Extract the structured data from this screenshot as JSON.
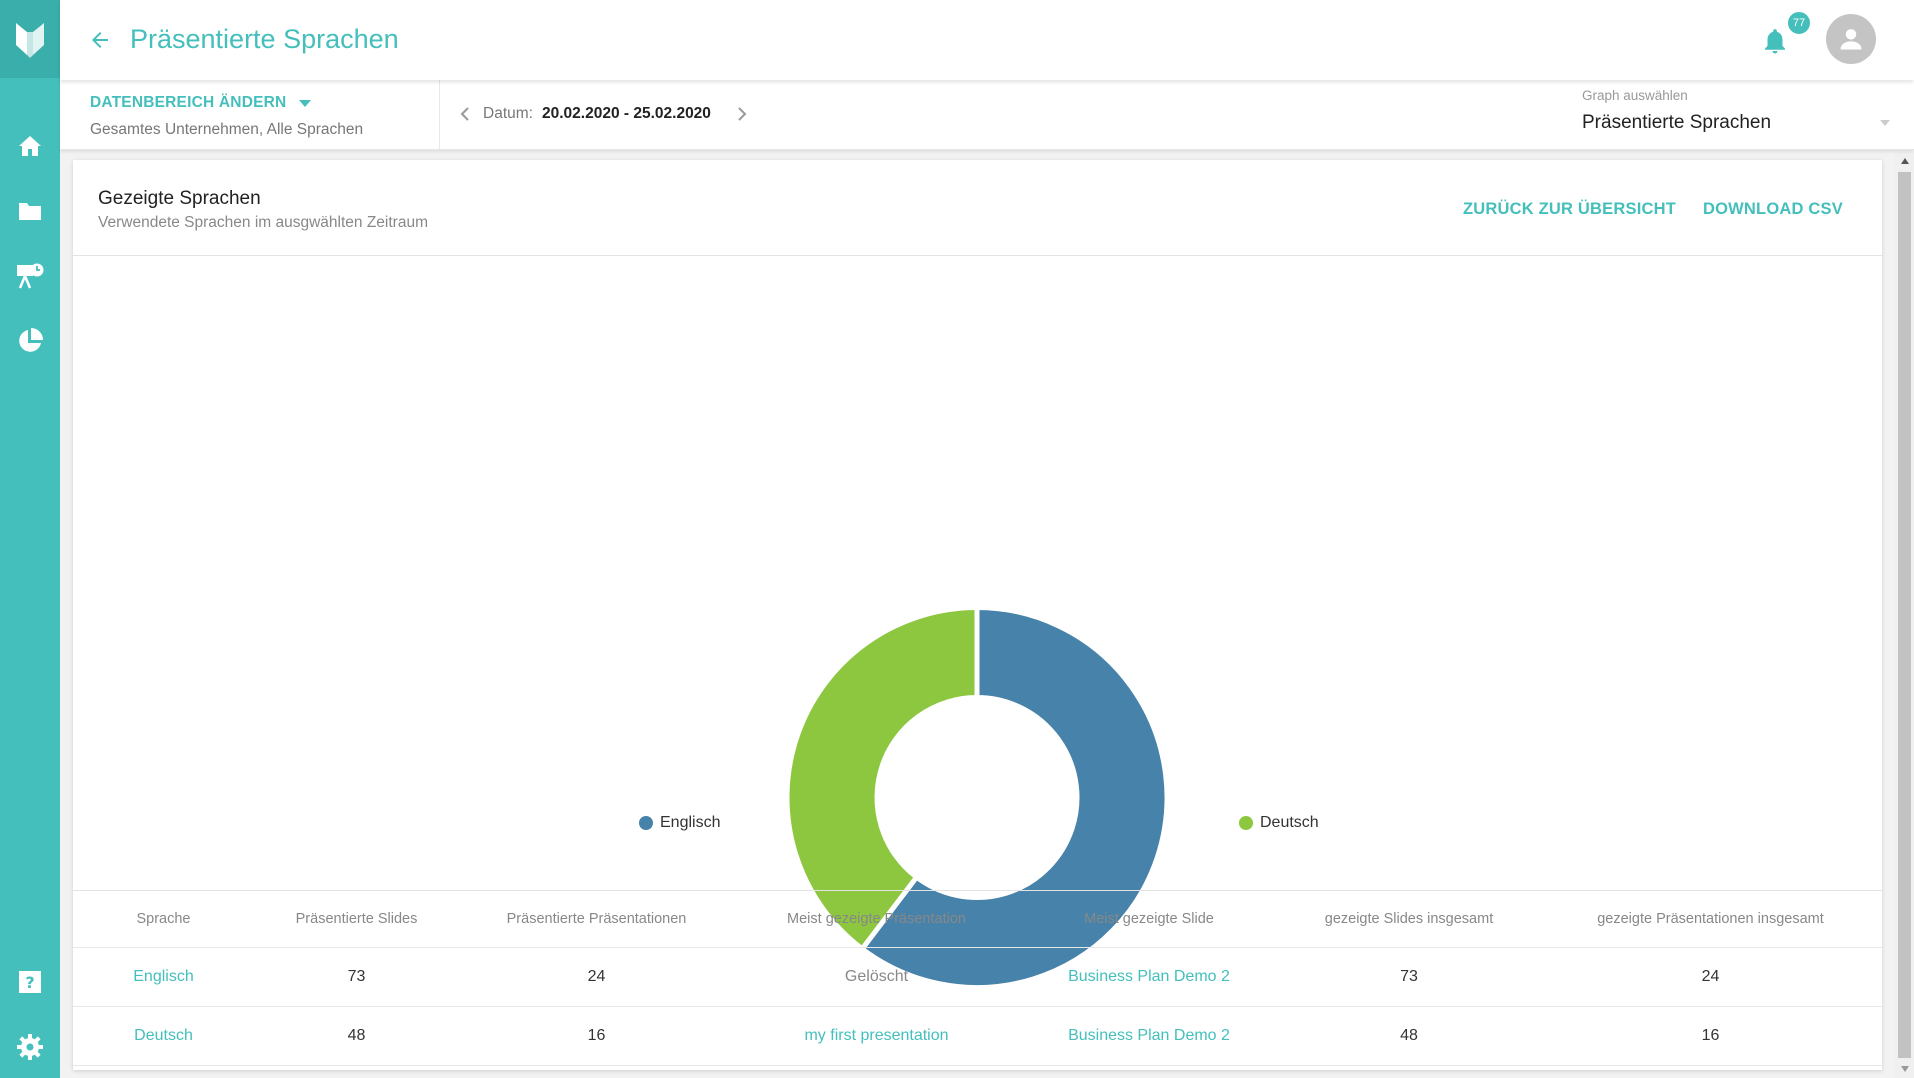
{
  "header": {
    "title": "Präsentierte Sprachen",
    "notification_count": "77"
  },
  "filter": {
    "range_button": "DATENBEREICH ÄNDERN",
    "range_sub": "Gesamtes Unternehmen,  Alle Sprachen",
    "date_label": "Datum:",
    "date_value": "20.02.2020 - 25.02.2020",
    "graph_label": "Graph auswählen",
    "graph_value": "Präsentierte Sprachen"
  },
  "card": {
    "title": "Gezeigte Sprachen",
    "subtitle": "Verwendete Sprachen im ausgwählten Zeitraum",
    "back_button": "ZURÜCK ZUR ÜBERSICHT",
    "csv_button": "DOWNLOAD CSV"
  },
  "colors": {
    "accent": "#44bfbc",
    "englisch": "#4682a9",
    "deutsch": "#8dc63f"
  },
  "chart_data": {
    "type": "pie",
    "title": "Gezeigte Sprachen",
    "categories": [
      "Englisch",
      "Deutsch"
    ],
    "values": [
      73,
      48
    ],
    "colors": [
      "#4682a9",
      "#8dc63f"
    ],
    "donut": true,
    "legend": "bottom"
  },
  "table": {
    "headers": [
      "Sprache",
      "Präsentierte Slides",
      "Präsentierte Präsentationen",
      "Meist gezeigte Präsentation",
      "Meist gezeigte Slide",
      "gezeigte Slides insgesamt",
      "gezeigte Präsentationen insgesamt"
    ],
    "rows": [
      [
        "Englisch",
        "73",
        "24",
        "Gelöscht",
        "Business Plan Demo 2",
        "73",
        "24"
      ],
      [
        "Deutsch",
        "48",
        "16",
        "my first presentation",
        "Business Plan Demo 2",
        "48",
        "16"
      ]
    ]
  }
}
